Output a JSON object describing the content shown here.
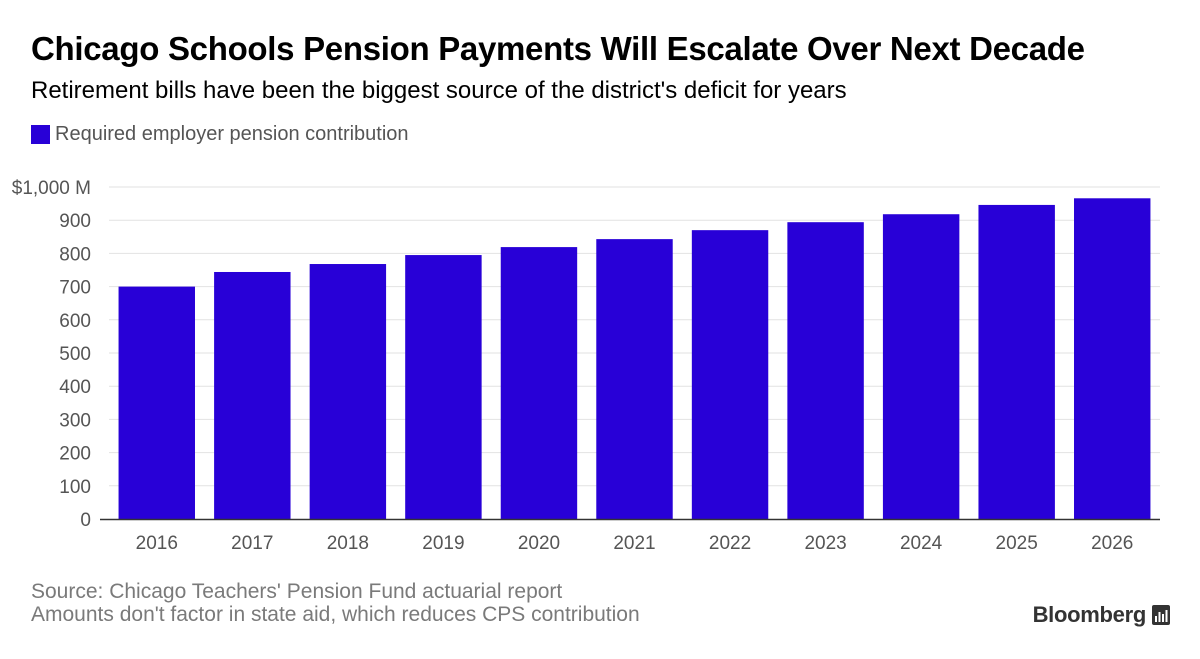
{
  "header": {
    "title": "Chicago Schools Pension Payments Will Escalate Over Next Decade",
    "subtitle": "Retirement bills have been the biggest source of the district's deficit for years"
  },
  "chart_data": {
    "type": "bar",
    "categories": [
      "2016",
      "2017",
      "2018",
      "2019",
      "2020",
      "2021",
      "2022",
      "2023",
      "2024",
      "2025",
      "2026"
    ],
    "series": [
      {
        "name": "Required employer pension contribution",
        "color": "#2800d7",
        "values": [
          700,
          744,
          768,
          795,
          819,
          843,
          870,
          894,
          918,
          946,
          966
        ]
      }
    ],
    "y_ticks": [
      0,
      100,
      200,
      300,
      400,
      500,
      600,
      700,
      800,
      900,
      1000
    ],
    "y_tick_labels": [
      "0",
      "100",
      "200",
      "300",
      "400",
      "500",
      "600",
      "700",
      "800",
      "900",
      "$1,000 M"
    ],
    "ylim": [
      0,
      1000
    ],
    "grid": true,
    "legend_position": "top-left"
  },
  "footer": {
    "source": "Source: Chicago Teachers' Pension Fund actuarial report",
    "note": "Amounts don't factor in state aid, which reduces CPS contribution",
    "brand": "Bloomberg",
    "brand_icon": "bloomberg-chart-icon"
  }
}
